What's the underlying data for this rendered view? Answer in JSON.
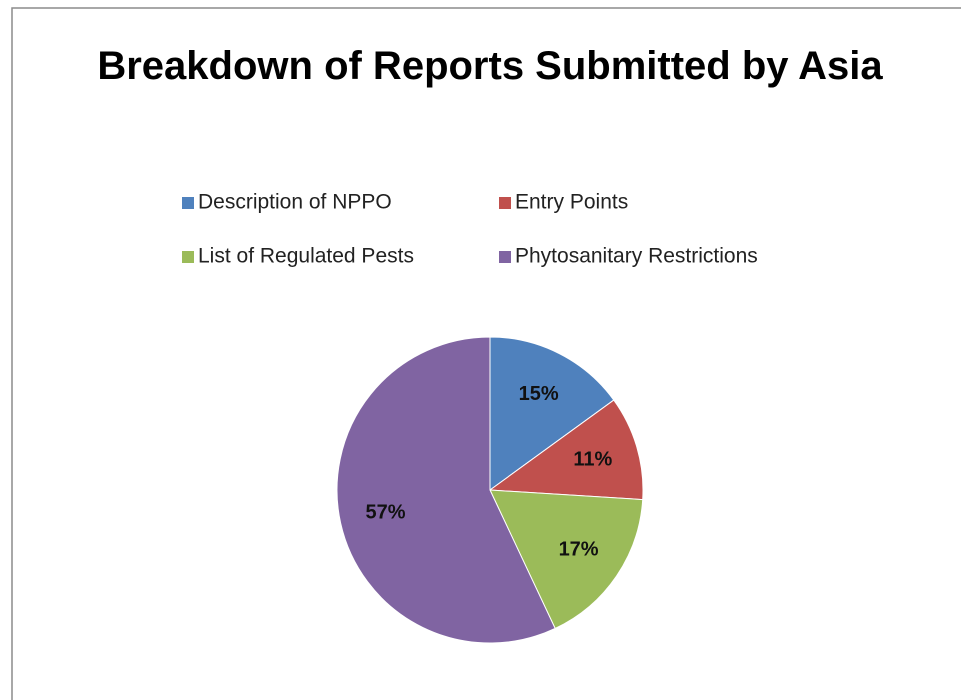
{
  "chart_data": {
    "type": "pie",
    "title": "Breakdown of Reports Submitted by Asia",
    "categories": [
      "Description of NPPO",
      "Entry Points",
      "List of Regulated Pests",
      "Phytosanitary Restrictions"
    ],
    "values": [
      15,
      11,
      17,
      57
    ],
    "value_labels": [
      "15%",
      "11%",
      "17%",
      "57%"
    ],
    "colors": [
      "#4f81bd",
      "#c0504d",
      "#9bbb59",
      "#8064a2"
    ],
    "legend": "top"
  }
}
